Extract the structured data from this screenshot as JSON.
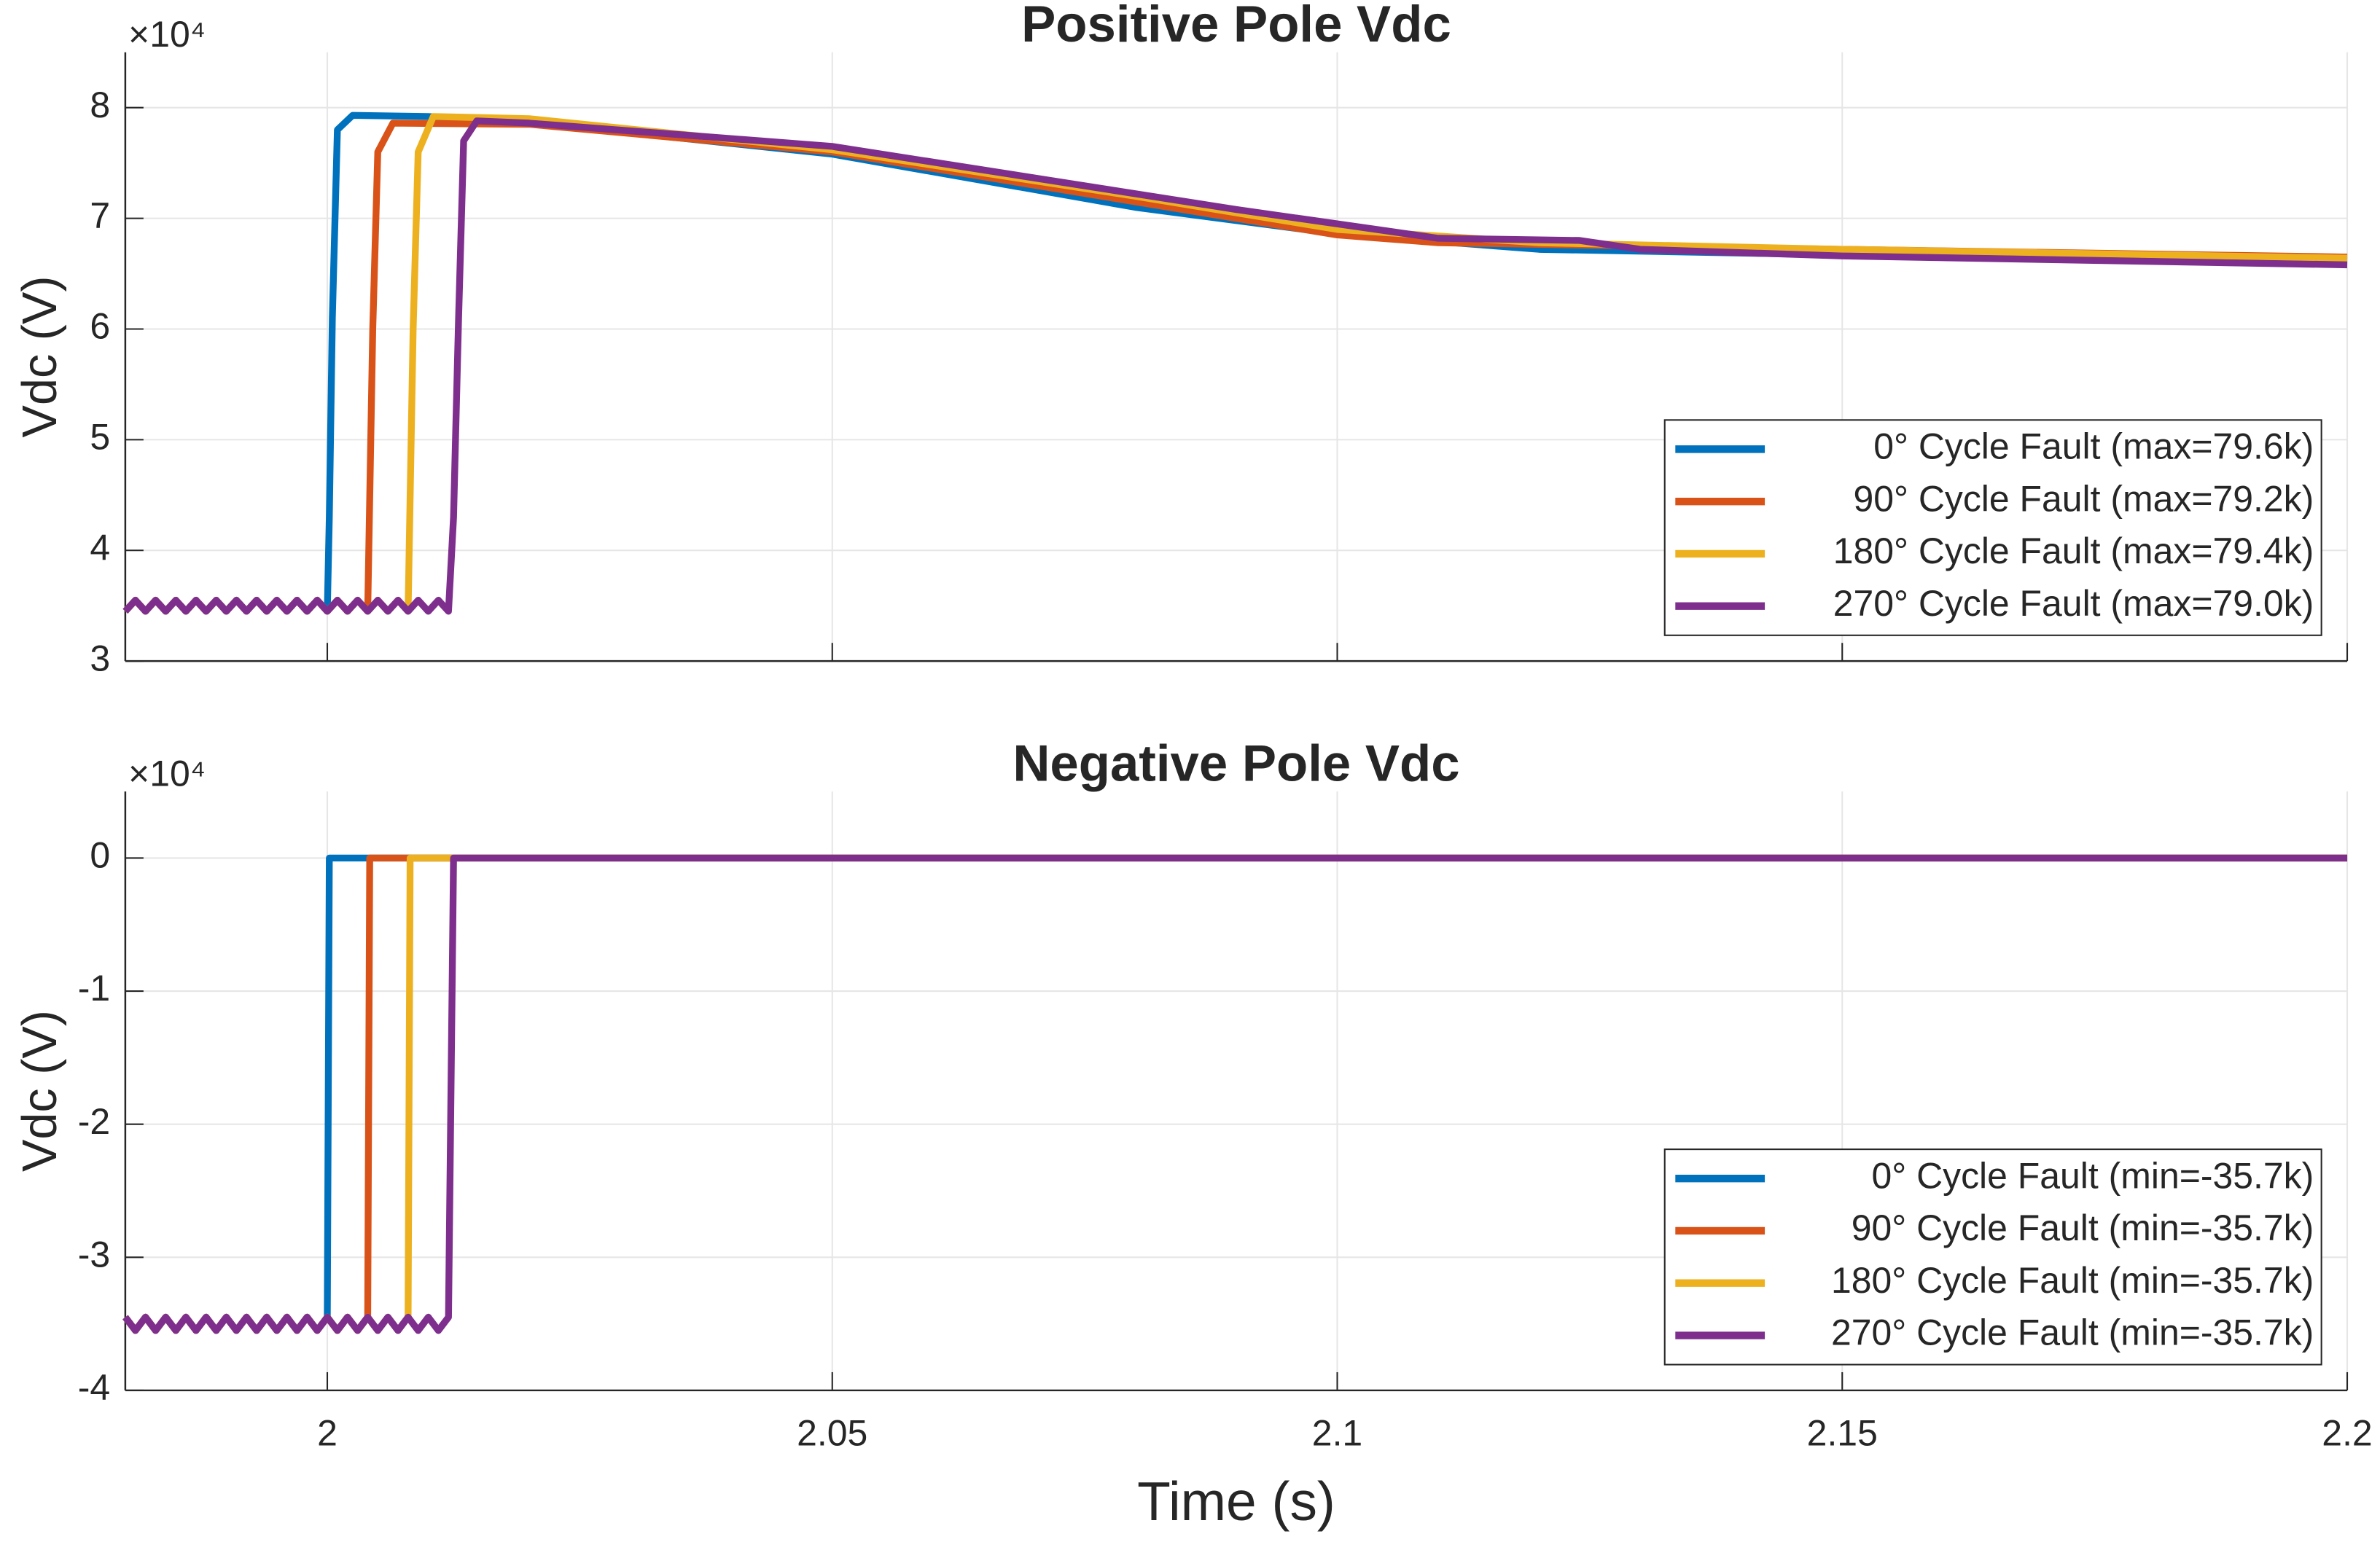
{
  "chart_data": [
    {
      "type": "line",
      "title": "Positive Pole Vdc",
      "ylabel": "Vdc (V)",
      "y_multiplier": "×10⁴",
      "xlim": [
        1.98,
        2.2
      ],
      "xticks": [
        2,
        2.05,
        2.1,
        2.15,
        2.2
      ],
      "ylim": [
        3,
        8.5
      ],
      "yticks": [
        3,
        4,
        5,
        6,
        7,
        8
      ],
      "grid": true,
      "legend": "lower right",
      "show_xticklabels": false,
      "series": [
        {
          "name": "0° Cycle Fault (max=79.6k)",
          "color": "#0072BD",
          "x": [
            1.98,
            1.981,
            1.982,
            1.983,
            1.984,
            1.985,
            1.986,
            1.987,
            1.988,
            1.989,
            1.99,
            1.991,
            1.992,
            1.993,
            1.994,
            1.995,
            1.996,
            1.997,
            1.998,
            1.999,
            2.0,
            2.0002,
            2.0005,
            2.001,
            2.0025,
            2.01,
            2.02,
            2.05,
            2.08,
            2.1,
            2.12,
            2.15,
            2.2
          ],
          "values": [
            3.45,
            3.55,
            3.45,
            3.55,
            3.45,
            3.55,
            3.45,
            3.55,
            3.45,
            3.55,
            3.45,
            3.55,
            3.45,
            3.55,
            3.45,
            3.55,
            3.45,
            3.55,
            3.45,
            3.55,
            3.45,
            4.3,
            6.1,
            7.8,
            7.93,
            7.92,
            7.87,
            7.58,
            7.1,
            6.86,
            6.72,
            6.67,
            6.62
          ]
        },
        {
          "name": "90° Cycle Fault (max=79.2k)",
          "color": "#D95319",
          "x": [
            1.98,
            1.981,
            1.982,
            1.983,
            1.984,
            1.985,
            1.986,
            1.987,
            1.988,
            1.989,
            1.99,
            1.991,
            1.992,
            1.993,
            1.994,
            1.995,
            1.996,
            1.997,
            1.998,
            1.999,
            2.0,
            2.001,
            2.002,
            2.003,
            2.004,
            2.0045,
            2.005,
            2.0065,
            2.02,
            2.05,
            2.08,
            2.1,
            2.11,
            2.15,
            2.2
          ],
          "values": [
            3.45,
            3.55,
            3.45,
            3.55,
            3.45,
            3.55,
            3.45,
            3.55,
            3.45,
            3.55,
            3.45,
            3.55,
            3.45,
            3.55,
            3.45,
            3.55,
            3.45,
            3.55,
            3.45,
            3.55,
            3.45,
            3.55,
            3.45,
            3.55,
            3.45,
            6.0,
            7.6,
            7.86,
            7.85,
            7.6,
            7.15,
            6.85,
            6.78,
            6.72,
            6.65
          ]
        },
        {
          "name": "180° Cycle Fault (max=79.4k)",
          "color": "#EDB120",
          "x": [
            1.98,
            1.981,
            1.982,
            1.983,
            1.984,
            1.985,
            1.986,
            1.987,
            1.988,
            1.989,
            1.99,
            1.991,
            1.992,
            1.993,
            1.994,
            1.995,
            1.996,
            1.997,
            1.998,
            1.999,
            2.0,
            2.001,
            2.002,
            2.003,
            2.004,
            2.005,
            2.006,
            2.007,
            2.008,
            2.0085,
            2.009,
            2.0105,
            2.02,
            2.05,
            2.08,
            2.1,
            2.12,
            2.15,
            2.2
          ],
          "values": [
            3.45,
            3.55,
            3.45,
            3.55,
            3.45,
            3.55,
            3.45,
            3.55,
            3.45,
            3.55,
            3.45,
            3.55,
            3.45,
            3.55,
            3.45,
            3.55,
            3.45,
            3.55,
            3.45,
            3.55,
            3.45,
            3.55,
            3.45,
            3.55,
            3.45,
            3.55,
            3.45,
            3.55,
            3.45,
            6.0,
            7.6,
            7.92,
            7.9,
            7.62,
            7.2,
            6.9,
            6.78,
            6.72,
            6.64
          ]
        },
        {
          "name": "270° Cycle Fault (max=79.0k)",
          "color": "#7E2F8E",
          "x": [
            1.98,
            1.981,
            1.982,
            1.983,
            1.984,
            1.985,
            1.986,
            1.987,
            1.988,
            1.989,
            1.99,
            1.991,
            1.992,
            1.993,
            1.994,
            1.995,
            1.996,
            1.997,
            1.998,
            1.999,
            2.0,
            2.001,
            2.002,
            2.003,
            2.004,
            2.005,
            2.006,
            2.007,
            2.008,
            2.009,
            2.01,
            2.011,
            2.012,
            2.0125,
            2.013,
            2.0135,
            2.0148,
            2.02,
            2.05,
            2.09,
            2.11,
            2.124,
            2.13,
            2.15,
            2.2
          ],
          "values": [
            3.45,
            3.55,
            3.45,
            3.55,
            3.45,
            3.55,
            3.45,
            3.55,
            3.45,
            3.55,
            3.45,
            3.55,
            3.45,
            3.55,
            3.45,
            3.55,
            3.45,
            3.55,
            3.45,
            3.55,
            3.45,
            3.55,
            3.45,
            3.55,
            3.45,
            3.55,
            3.45,
            3.55,
            3.45,
            3.55,
            3.45,
            3.55,
            3.45,
            4.3,
            6.1,
            7.7,
            7.88,
            7.86,
            7.65,
            7.08,
            6.82,
            6.8,
            6.72,
            6.66,
            6.58
          ]
        }
      ]
    },
    {
      "type": "line",
      "title": "Negative Pole Vdc",
      "ylabel": "Vdc (V)",
      "xlabel": "Time (s)",
      "y_multiplier": "×10⁴",
      "xlim": [
        1.98,
        2.2
      ],
      "xticks": [
        2,
        2.05,
        2.1,
        2.15,
        2.2
      ],
      "ylim": [
        -4,
        0.5
      ],
      "yticks": [
        -4,
        -3,
        -2,
        -1,
        0
      ],
      "grid": true,
      "legend": "lower right",
      "show_xticklabels": true,
      "series": [
        {
          "name": "0° Cycle Fault (min=-35.7k)",
          "color": "#0072BD",
          "x": [
            1.98,
            1.981,
            1.982,
            1.983,
            1.984,
            1.985,
            1.986,
            1.987,
            1.988,
            1.989,
            1.99,
            1.991,
            1.992,
            1.993,
            1.994,
            1.995,
            1.996,
            1.997,
            1.998,
            1.999,
            2.0,
            2.0002,
            2.2
          ],
          "values": [
            -3.45,
            -3.55,
            -3.45,
            -3.55,
            -3.45,
            -3.55,
            -3.45,
            -3.55,
            -3.45,
            -3.55,
            -3.45,
            -3.55,
            -3.45,
            -3.55,
            -3.45,
            -3.55,
            -3.45,
            -3.55,
            -3.45,
            -3.55,
            -3.45,
            0,
            0
          ]
        },
        {
          "name": "90° Cycle Fault (min=-35.7k)",
          "color": "#D95319",
          "x": [
            1.98,
            1.981,
            1.982,
            1.983,
            1.984,
            1.985,
            1.986,
            1.987,
            1.988,
            1.989,
            1.99,
            1.991,
            1.992,
            1.993,
            1.994,
            1.995,
            1.996,
            1.997,
            1.998,
            1.999,
            2.0,
            2.001,
            2.002,
            2.003,
            2.004,
            2.0042,
            2.2
          ],
          "values": [
            -3.45,
            -3.55,
            -3.45,
            -3.55,
            -3.45,
            -3.55,
            -3.45,
            -3.55,
            -3.45,
            -3.55,
            -3.45,
            -3.55,
            -3.45,
            -3.55,
            -3.45,
            -3.55,
            -3.45,
            -3.55,
            -3.45,
            -3.55,
            -3.45,
            -3.55,
            -3.45,
            -3.55,
            -3.45,
            0,
            0
          ]
        },
        {
          "name": "180° Cycle Fault (min=-35.7k)",
          "color": "#EDB120",
          "x": [
            1.98,
            1.981,
            1.982,
            1.983,
            1.984,
            1.985,
            1.986,
            1.987,
            1.988,
            1.989,
            1.99,
            1.991,
            1.992,
            1.993,
            1.994,
            1.995,
            1.996,
            1.997,
            1.998,
            1.999,
            2.0,
            2.001,
            2.002,
            2.003,
            2.004,
            2.005,
            2.006,
            2.007,
            2.008,
            2.0082,
            2.2
          ],
          "values": [
            -3.45,
            -3.55,
            -3.45,
            -3.55,
            -3.45,
            -3.55,
            -3.45,
            -3.55,
            -3.45,
            -3.55,
            -3.45,
            -3.55,
            -3.45,
            -3.55,
            -3.45,
            -3.55,
            -3.45,
            -3.55,
            -3.45,
            -3.55,
            -3.45,
            -3.55,
            -3.45,
            -3.55,
            -3.45,
            -3.55,
            -3.45,
            -3.55,
            -3.45,
            0,
            0
          ]
        },
        {
          "name": "270° Cycle Fault (min=-35.7k)",
          "color": "#7E2F8E",
          "x": [
            1.98,
            1.981,
            1.982,
            1.983,
            1.984,
            1.985,
            1.986,
            1.987,
            1.988,
            1.989,
            1.99,
            1.991,
            1.992,
            1.993,
            1.994,
            1.995,
            1.996,
            1.997,
            1.998,
            1.999,
            2.0,
            2.001,
            2.002,
            2.003,
            2.004,
            2.005,
            2.006,
            2.007,
            2.008,
            2.009,
            2.01,
            2.011,
            2.012,
            2.0125,
            2.2
          ],
          "values": [
            -3.45,
            -3.55,
            -3.45,
            -3.55,
            -3.45,
            -3.55,
            -3.45,
            -3.55,
            -3.45,
            -3.55,
            -3.45,
            -3.55,
            -3.45,
            -3.55,
            -3.45,
            -3.55,
            -3.45,
            -3.55,
            -3.45,
            -3.55,
            -3.45,
            -3.55,
            -3.45,
            -3.55,
            -3.45,
            -3.55,
            -3.45,
            -3.55,
            -3.45,
            -3.55,
            -3.45,
            -3.55,
            -3.45,
            0,
            0
          ]
        }
      ]
    }
  ]
}
